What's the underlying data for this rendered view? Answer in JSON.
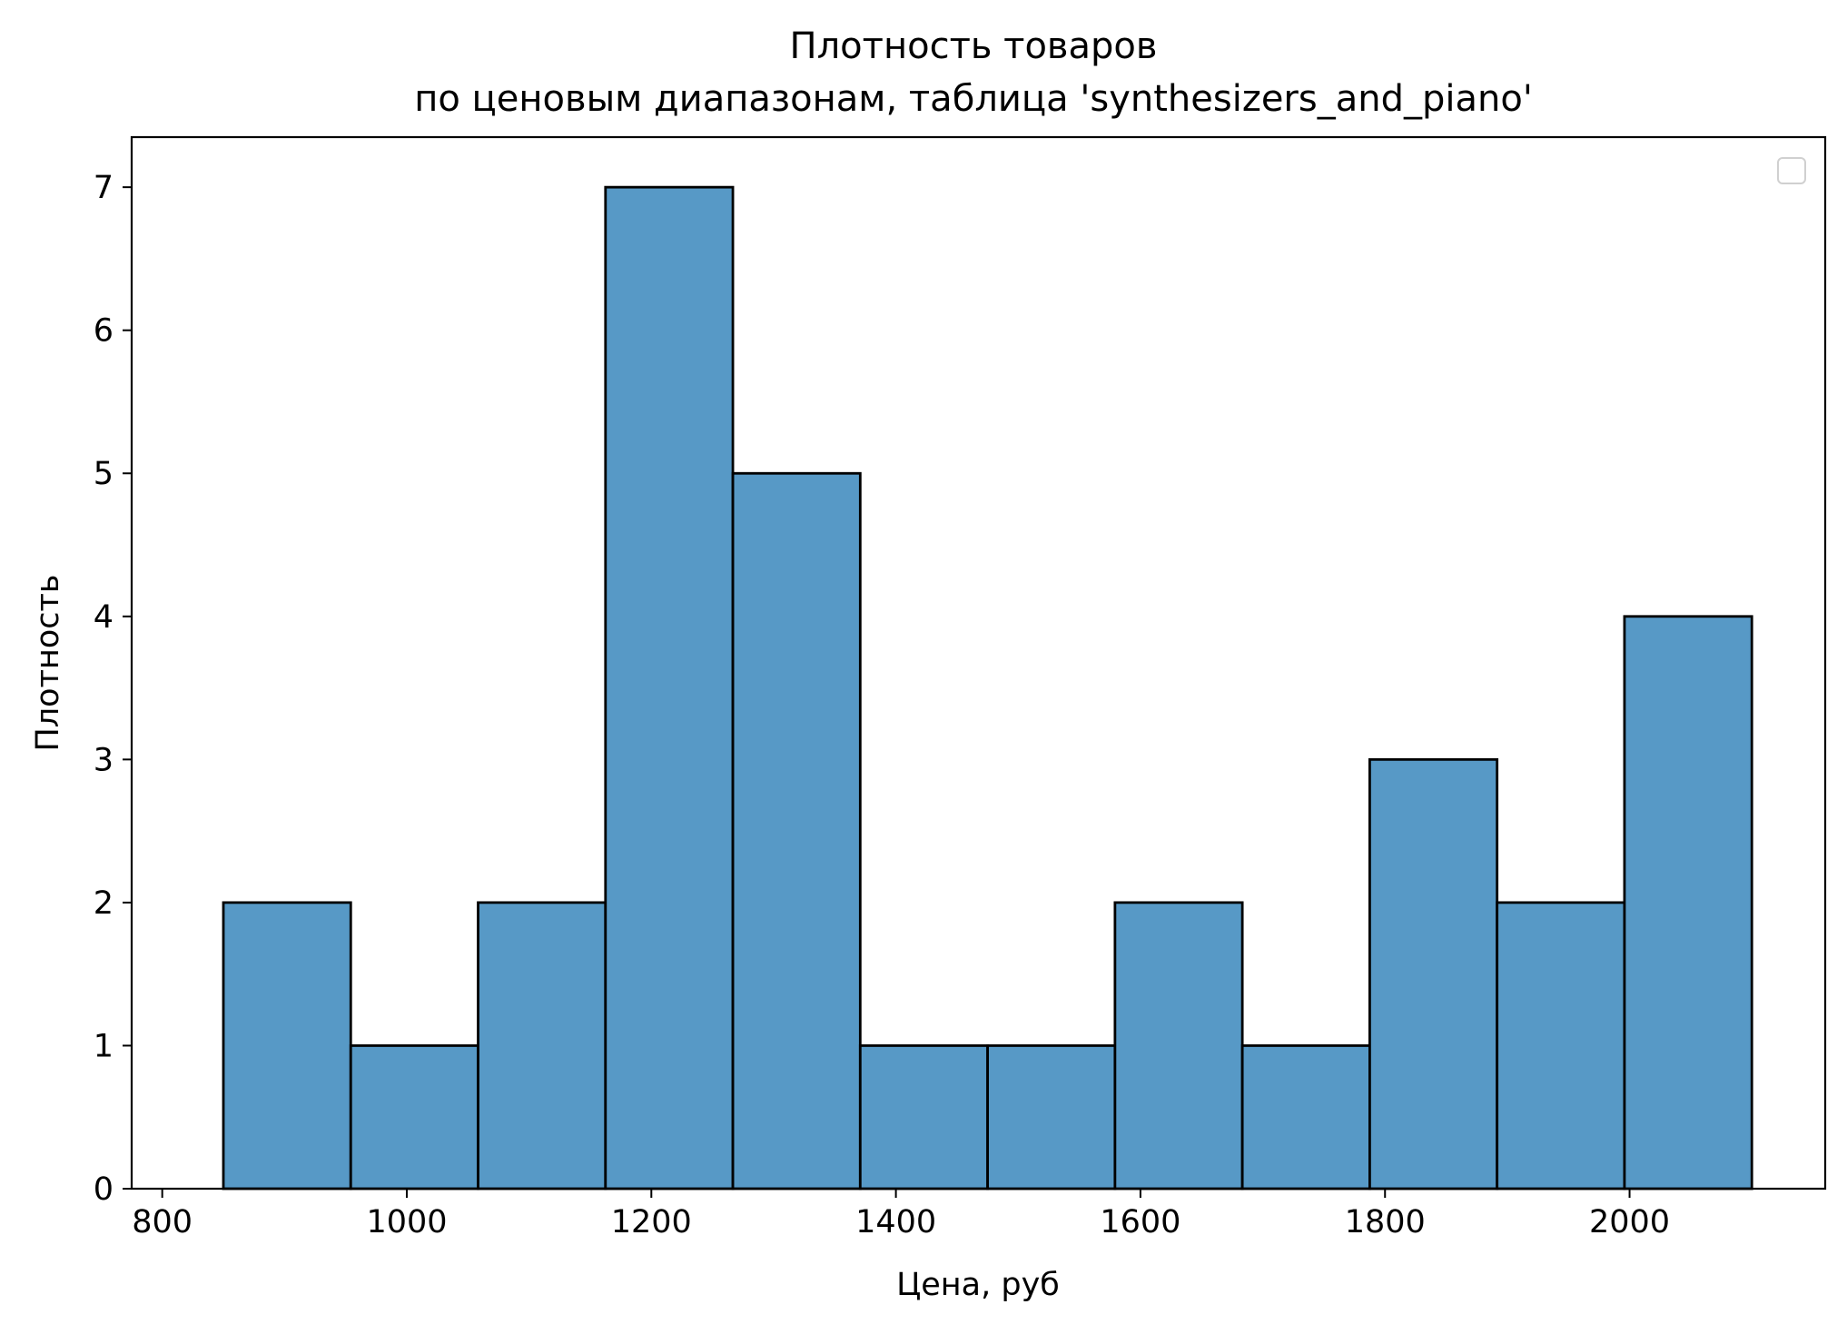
{
  "chart_data": {
    "type": "bar",
    "title": "Плотность товаров\nпо ценовым диапазонам, таблица 'synthesizers_and_piano'",
    "title_lines": [
      "Плотность товаров",
      "по ценовым диапазонам, таблица 'synthesizers_and_piano'"
    ],
    "xlabel": "Цена, руб",
    "ylabel": "Плотность",
    "xlim": [
      775,
      2160
    ],
    "ylim": [
      0,
      7.35
    ],
    "x_ticks": [
      800,
      1000,
      1200,
      1400,
      1600,
      1800,
      2000
    ],
    "x_tick_labels": [
      "800",
      "1000",
      "1200",
      "1400",
      "1600",
      "1800",
      "2000"
    ],
    "y_ticks": [
      0,
      1,
      2,
      3,
      4,
      5,
      6,
      7
    ],
    "y_tick_labels": [
      "0",
      "1",
      "2",
      "3",
      "4",
      "5",
      "6",
      "7"
    ],
    "bin_edges": [
      850,
      954.17,
      1058.33,
      1162.5,
      1266.67,
      1370.83,
      1475,
      1579.17,
      1683.33,
      1787.5,
      1891.67,
      1995.83,
      2100
    ],
    "values": [
      2,
      1,
      2,
      7,
      5,
      1,
      1,
      2,
      1,
      3,
      2,
      4
    ],
    "bar_color": "#5799c6",
    "edge_color": "#000000",
    "grid": false,
    "legend": {
      "placement": "top-right",
      "entries": []
    }
  }
}
